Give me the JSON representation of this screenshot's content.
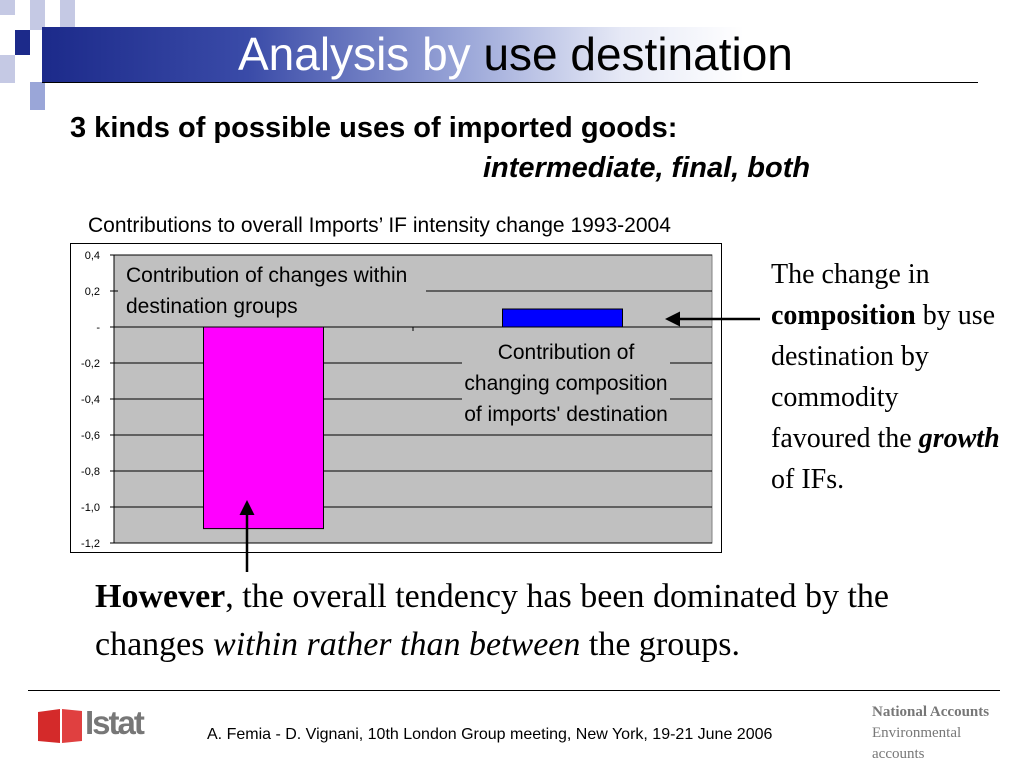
{
  "title": {
    "part1": "Analysis by ",
    "part2": "use destination"
  },
  "subtitle": {
    "line1": "3 kinds of possible uses of imported goods:",
    "line2": "intermediate, final, both"
  },
  "chart_data": {
    "type": "bar",
    "title": "Contributions to overall Imports’ IF intensity change 1993-2004",
    "categories": [
      "Contribution of changes within destination groups",
      "Contribution of changing composition of imports' destination"
    ],
    "values": [
      -1.12,
      0.1
    ],
    "bar_colors": [
      "#ff00ff",
      "#0000ff"
    ],
    "ylim": [
      -1.2,
      0.4
    ],
    "yticks": [
      0.4,
      0.2,
      0,
      -0.2,
      -0.4,
      -0.6,
      -0.8,
      -1.0,
      -1.2
    ],
    "ytick_labels": [
      "0,4",
      "0,2",
      "-",
      "-0,2",
      "-0,4",
      "-0,6",
      "-0,8",
      "-1,0",
      "-1,2"
    ],
    "grid": true,
    "plot_background": "#c0c0c0",
    "annotations": [
      {
        "target": "bar-1",
        "text": "Contribution of changes within destination groups"
      },
      {
        "target": "bar-2",
        "text": "Contribution of changing composition of imports' destination"
      }
    ]
  },
  "annotations": {
    "within": "Contribution of changes within destination groups",
    "composition": "Contribution of changing composition of imports' destination"
  },
  "side_text": {
    "p1": "The change in ",
    "bold": "composition",
    "p2": " by use destination  by commodity favoured the ",
    "bolditalic": "growth",
    "p3": " of  IFs."
  },
  "bottom_text": {
    "bold": "However",
    "p1": ", the overall tendency has been dominated by the changes ",
    "italic": "within rather than between",
    "p2": " the groups."
  },
  "footer": {
    "logo_text": "Istat",
    "credit": "A. Femia - D. Vignani, 10th London Group meeting, New York, 19-21 June 2006",
    "right_line1": "National Accounts",
    "right_line2": "Environmental",
    "right_line3": "accounts"
  }
}
